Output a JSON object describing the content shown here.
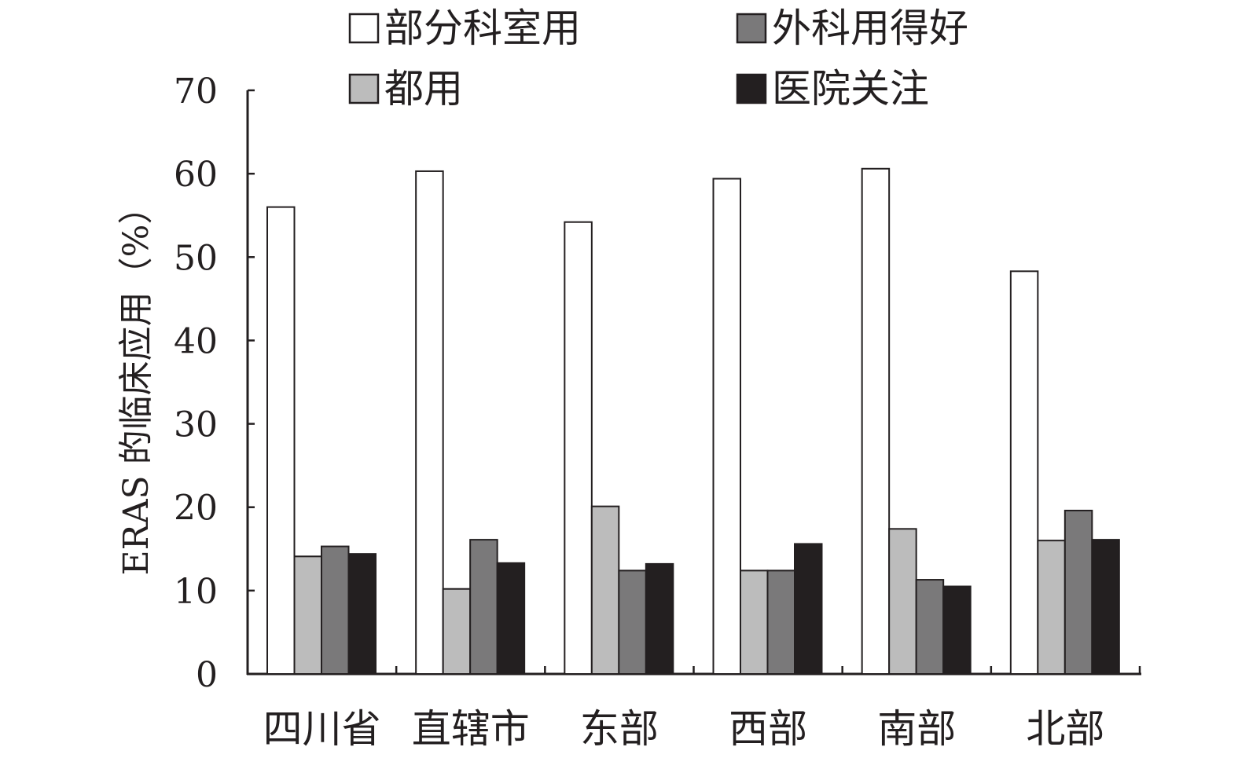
{
  "chart_data": {
    "type": "bar",
    "title": "",
    "xlabel": "",
    "ylabel": "ERAS 的临床应用（%）",
    "ylim": [
      0,
      70
    ],
    "yticks": [
      0,
      10,
      20,
      30,
      40,
      50,
      60,
      70
    ],
    "grid": false,
    "legend_placement": "top",
    "categories": [
      "四川省",
      "直辖市",
      "东部",
      "西部",
      "南部",
      "北部"
    ],
    "series": [
      {
        "name": "部分科室用",
        "color": "#ffffff",
        "values": [
          56.0,
          60.3,
          54.2,
          59.4,
          60.6,
          48.3
        ]
      },
      {
        "name": "都用",
        "color": "#bcbcbc",
        "values": [
          14.1,
          10.2,
          20.1,
          12.4,
          17.4,
          16.0
        ]
      },
      {
        "name": "外科用得好",
        "color": "#7a797a",
        "values": [
          15.3,
          16.1,
          12.4,
          12.4,
          11.3,
          19.6
        ]
      },
      {
        "name": "医院关注",
        "color": "#231f20",
        "values": [
          14.4,
          13.3,
          13.2,
          15.6,
          10.5,
          16.1
        ]
      }
    ]
  }
}
